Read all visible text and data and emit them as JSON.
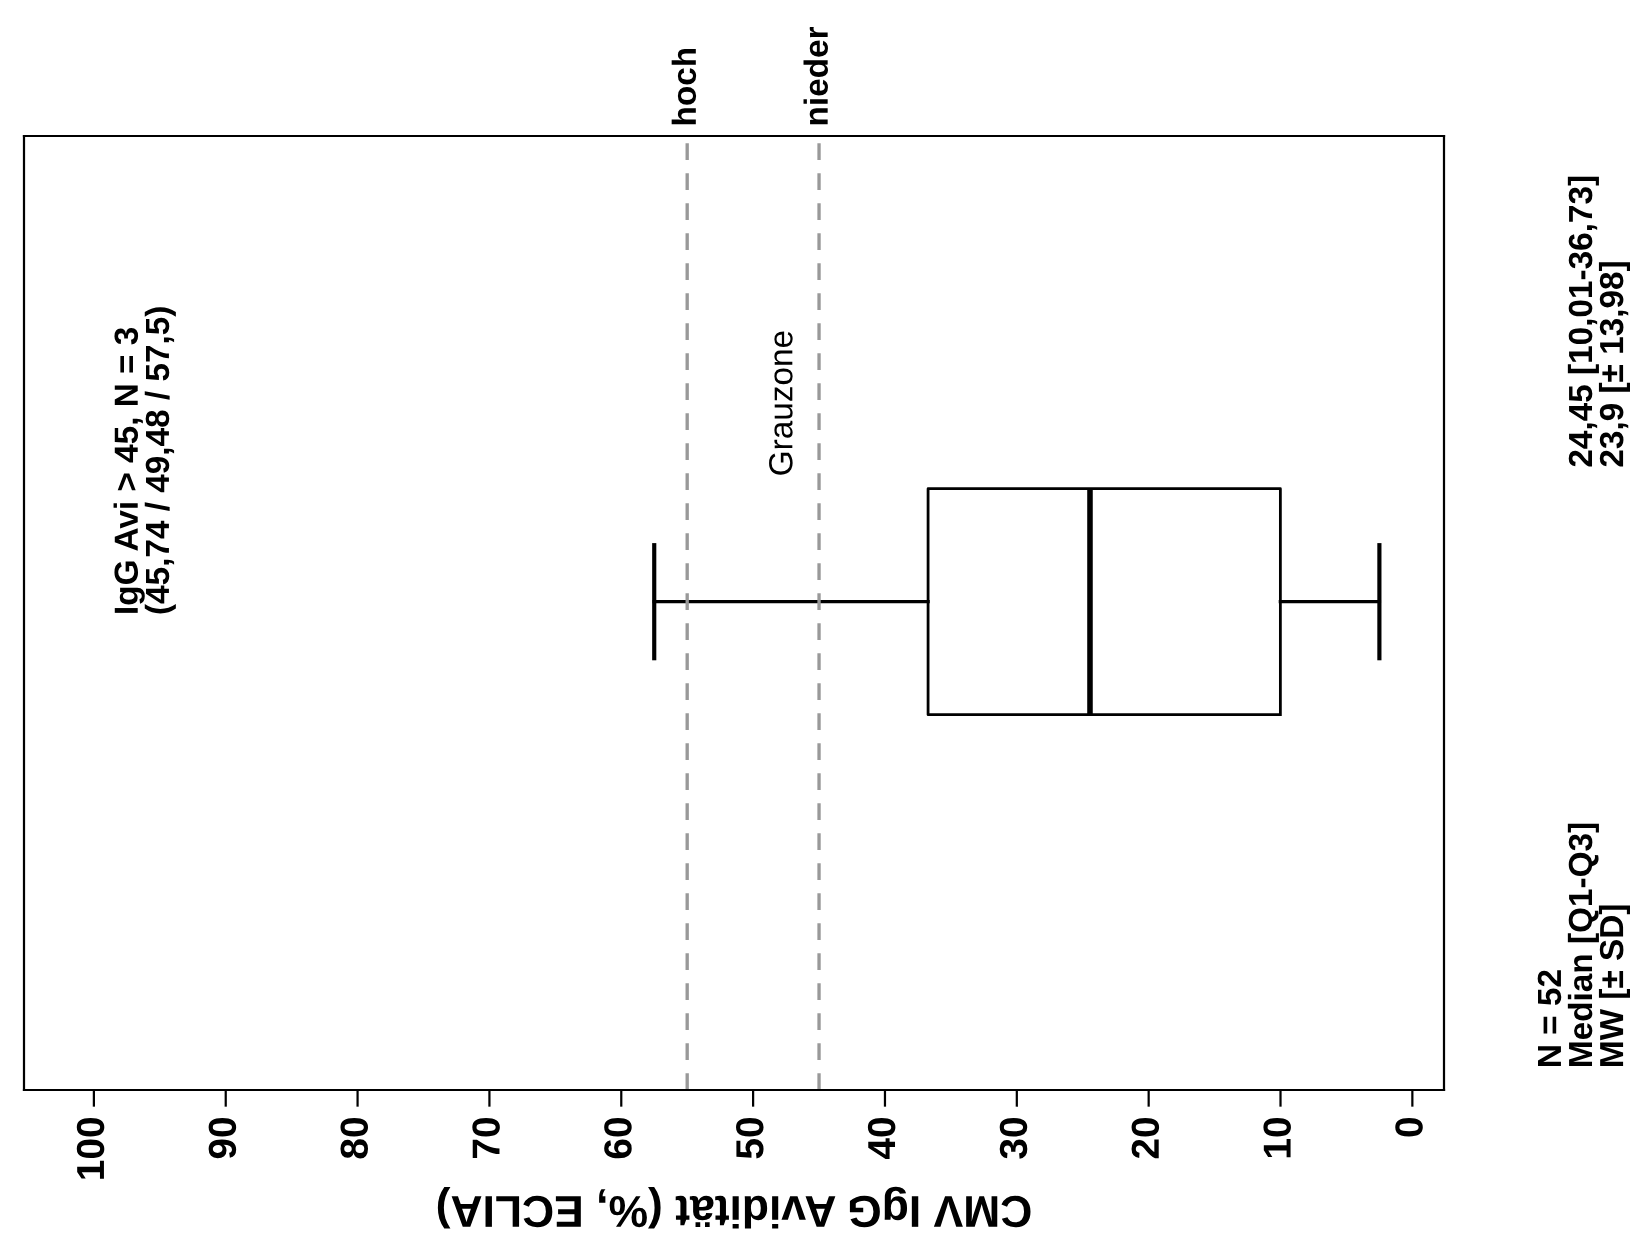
{
  "chart_data": {
    "type": "box",
    "orientation": "horizontal",
    "xlabel": "CMV IgG Avidität (%, ECLIA)",
    "categories": [
      null
    ],
    "boxes": [
      {
        "low": 2.5,
        "q1": 10.01,
        "median": 24.45,
        "q3": 36.73,
        "high": 57.5
      }
    ],
    "color": "#000000",
    "xlim": [
      105.3,
      -2.4
    ],
    "xticks": [
      100,
      90,
      80,
      70,
      60,
      50,
      40,
      30,
      20,
      10,
      0
    ],
    "tick_labels": "x",
    "grid": false,
    "ref_lines": [
      {
        "axis": "x",
        "value": 55,
        "label": "hoch",
        "color": "#999999",
        "line_style": "dashed"
      },
      {
        "axis": "x",
        "value": 45,
        "label": "nieder",
        "color": "#999999",
        "line_style": "dashed"
      }
    ],
    "annotations": [
      "Grauzone",
      "IgG Avi > 45, N = 3\n(45,74 / 49,48 / 57,5)",
      "N = 52\nMedian [Q1-Q3]\nMW [± SD]",
      "24,45 [10,01-36,73]\n23,9 [± 13,98]"
    ]
  }
}
